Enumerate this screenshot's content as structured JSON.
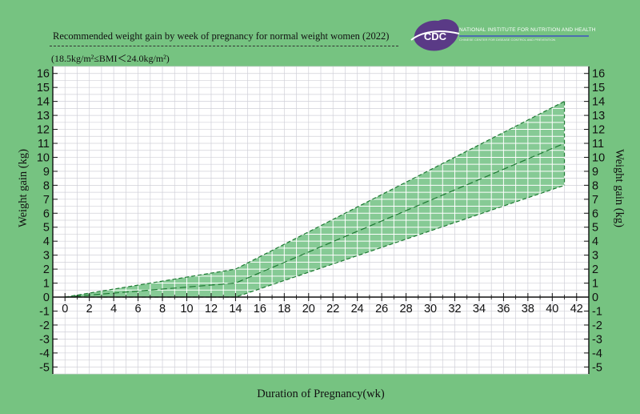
{
  "chart_data": {
    "type": "area",
    "title": "Recommended  weight gain by week of pregnancy for normal weight women (2022)",
    "subtitle": "(18.5kg/m²≤BMI＜24.0kg/m²)",
    "xlabel": "Duration of Pregnancy(wk)",
    "ylabel": "Weight gain (kg)",
    "ylabel_right": "Weight gain (kg)",
    "xlim": [
      -1,
      43
    ],
    "ylim": [
      -5.5,
      16.5
    ],
    "x_ticks": [
      0,
      2,
      4,
      6,
      8,
      10,
      12,
      14,
      16,
      18,
      20,
      22,
      24,
      26,
      28,
      30,
      32,
      34,
      36,
      38,
      40,
      42
    ],
    "y_ticks": [
      -5,
      -4,
      -3,
      -2,
      -1,
      0,
      1,
      2,
      3,
      4,
      5,
      6,
      7,
      8,
      9,
      10,
      11,
      12,
      13,
      14,
      15,
      16
    ],
    "grid": true,
    "series": [
      {
        "role": "upper",
        "x": [
          0,
          14,
          41
        ],
        "values": [
          0,
          2,
          14
        ]
      },
      {
        "role": "median",
        "x": [
          0,
          14,
          41
        ],
        "values": [
          0,
          1,
          11
        ]
      },
      {
        "role": "lower",
        "x": [
          0,
          14,
          41
        ],
        "values": [
          0,
          0,
          8
        ]
      }
    ],
    "colors": {
      "background": "#76c381",
      "plot_background": "#ffffff",
      "band_fill": "#79c48a",
      "band_line": "#1e7a33",
      "grid": "#d0d0d8",
      "axis": "#111111"
    }
  },
  "logo": {
    "text": "CDC",
    "org": "NATIONAL INSTITUTE FOR NUTRITION AND HEALTH",
    "org_sub": "CHINESE CENTER FOR DISEASE CONTROL AND PREVENTION"
  }
}
